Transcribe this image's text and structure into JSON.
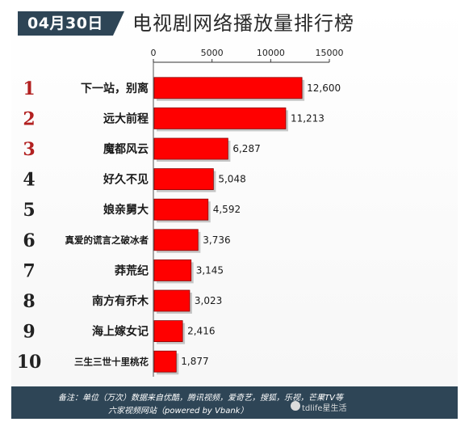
{
  "header": {
    "date": "04月30日",
    "title": "电视剧网络播放量排行榜"
  },
  "colors": {
    "bar": "#ff0000",
    "bar_edge": "#8a0000",
    "header_bg": "#2e4556",
    "rank_red": "#b22020",
    "rank_dark": "#222222"
  },
  "chart_data": {
    "type": "bar",
    "orientation": "horizontal",
    "title": "电视剧网络播放量排行榜",
    "xlim": [
      0,
      15000
    ],
    "x_ticks": [
      "0",
      "5000",
      "10000",
      "15000"
    ],
    "x_tick_values": [
      0,
      5000,
      10000,
      15000
    ],
    "axis_position": "top",
    "grid": false,
    "ranks": [
      "1",
      "2",
      "3",
      "4",
      "5",
      "6",
      "7",
      "8",
      "9",
      "10"
    ],
    "categories": [
      "下一站，别离",
      "远大前程",
      "魔都风云",
      "好久不见",
      "娘亲舅大",
      "真爱的谎言之破冰者",
      "莽荒纪",
      "南方有乔木",
      "海上嫁女记",
      "三生三世十里桃花"
    ],
    "values": [
      12600,
      11213,
      6287,
      5048,
      4592,
      3736,
      3145,
      3023,
      2416,
      1877
    ],
    "value_labels": [
      "12,600",
      "11,213",
      "6,287",
      "5,048",
      "4,592",
      "3,736",
      "3,145",
      "3,023",
      "2,416",
      "1,877"
    ]
  },
  "footer": {
    "note_line1": "备注：单位（万次）数据来自优酷，腾讯视频，爱奇艺，搜狐，乐视，芒果TV等",
    "note_line2": "六家视频网站（powered by Vbank）",
    "watermark": "tdlife星生活"
  }
}
